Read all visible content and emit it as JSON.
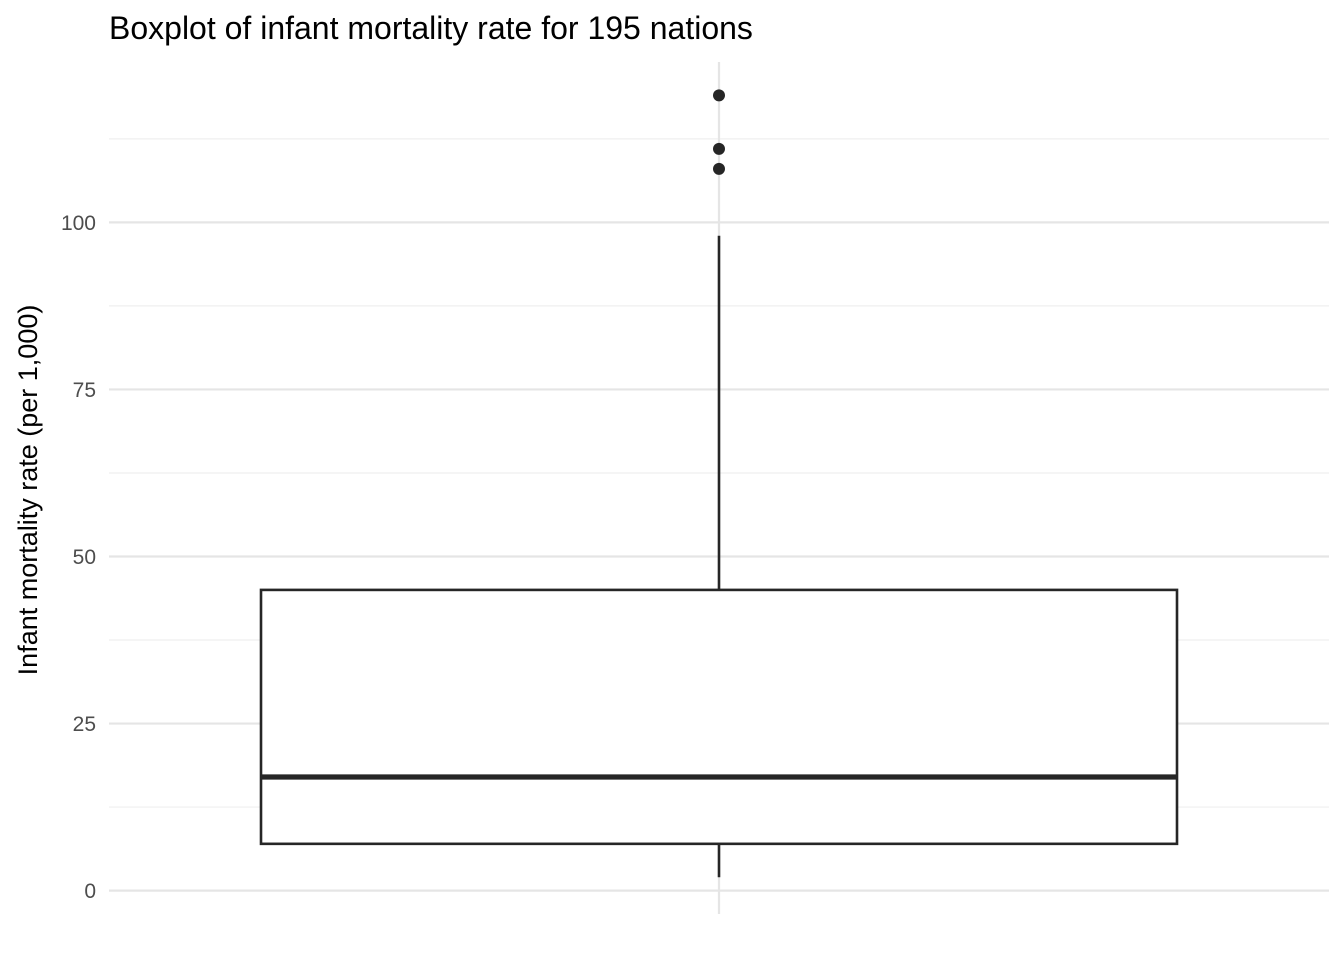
{
  "chart_data": {
    "type": "boxplot",
    "title": "Boxplot of infant mortality rate for 195 nations",
    "xlabel": "",
    "ylabel": "Infant mortality rate (per 1,000)",
    "ylim": [
      -3.5,
      124
    ],
    "y_ticks": [
      0,
      25,
      50,
      75,
      100
    ],
    "y_tick_labels": [
      "0",
      "25",
      "50",
      "75",
      "100"
    ],
    "y_minor_ticks": [
      12.5,
      37.5,
      62.5,
      87.5,
      112.5
    ],
    "grid": true,
    "box": {
      "min": 2,
      "q1": 7,
      "median": 17,
      "q3": 45,
      "max": 98,
      "outliers": [
        108,
        111,
        119
      ]
    }
  }
}
